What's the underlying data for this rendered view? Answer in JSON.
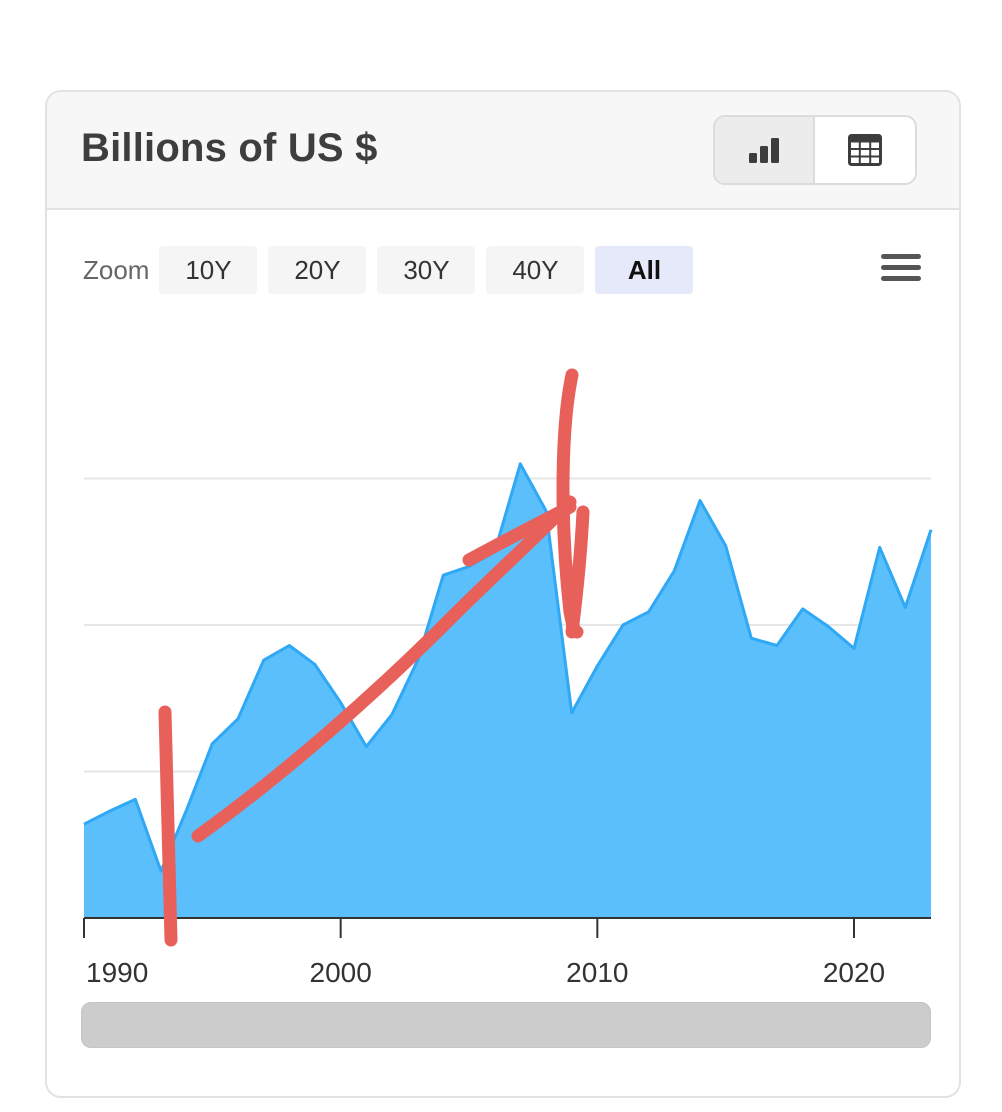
{
  "header": {
    "title": "Billions of US $",
    "chart_view_icon": "bar-chart-icon",
    "table_view_icon": "table-icon"
  },
  "zoom": {
    "label": "Zoom",
    "options": [
      "10Y",
      "20Y",
      "30Y",
      "40Y",
      "All"
    ],
    "selected": "All"
  },
  "menu_icon": "hamburger-menu-icon",
  "colors": {
    "area_fill": "#5bbffb",
    "area_stroke": "#2fa8f5",
    "annotation": "#e8605a",
    "selected_zoom_bg": "#e6e9f9"
  },
  "chart_data": {
    "type": "area",
    "title": "Billions of US $",
    "xlabel": "",
    "ylabel": "",
    "x": [
      1990,
      1991,
      1992,
      1993,
      1994,
      1995,
      1996,
      1997,
      1998,
      1999,
      2000,
      2001,
      2002,
      2003,
      2004,
      2005,
      2006,
      2007,
      2008,
      2009,
      2010,
      2011,
      2012,
      2013,
      2014,
      2015,
      2016,
      2017,
      2018,
      2019,
      2020,
      2021,
      2022,
      2023
    ],
    "values": [
      6.4,
      7.3,
      8.1,
      3.2,
      7.4,
      11.9,
      13.6,
      17.6,
      18.6,
      17.3,
      14.7,
      11.7,
      13.9,
      17.6,
      23.4,
      24.0,
      25.0,
      31.0,
      27.8,
      14.0,
      17.2,
      20.0,
      20.9,
      23.7,
      28.5,
      25.4,
      19.1,
      18.6,
      21.1,
      19.9,
      18.4,
      25.3,
      21.2,
      26.5
    ],
    "xlim": [
      1990,
      2023
    ],
    "ylim": [
      0,
      40
    ],
    "xticks": [
      "1990",
      "2000",
      "2010",
      "2020"
    ],
    "y_gridlines": [
      10,
      20,
      30
    ],
    "y_tick_labels_shown": false,
    "grid": true,
    "legend": "none",
    "annotations": "hand-drawn red arrow and vertical marks over chart"
  }
}
